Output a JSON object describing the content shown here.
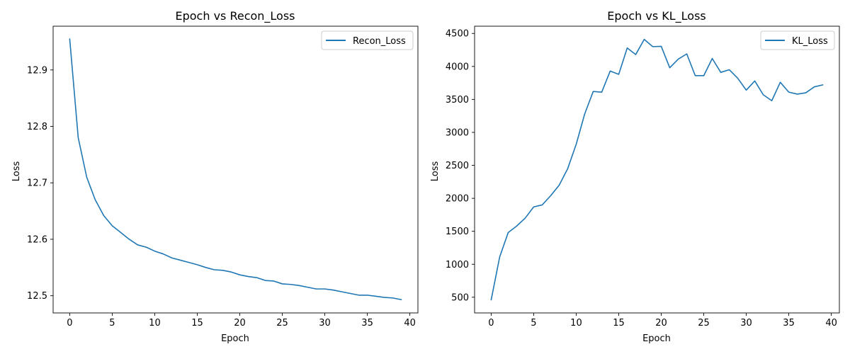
{
  "chart_data": [
    {
      "type": "line",
      "title": "Epoch vs Recon_Loss",
      "xlabel": "Epoch",
      "ylabel": "Loss",
      "xlim": [
        -1.95,
        40.95
      ],
      "ylim": [
        12.4695,
        12.9775
      ],
      "xticks": [
        0,
        5,
        10,
        15,
        20,
        25,
        30,
        35,
        40
      ],
      "xtick_labels": [
        "0",
        "5",
        "10",
        "15",
        "20",
        "25",
        "30",
        "35",
        "40"
      ],
      "yticks": [
        12.5,
        12.6,
        12.7,
        12.8,
        12.9
      ],
      "ytick_labels": [
        "12.5",
        "12.6",
        "12.7",
        "12.8",
        "12.9"
      ],
      "legend": "top-right",
      "grid": false,
      "series": [
        {
          "name": "Recon_Loss",
          "color": "#1f77b4",
          "x": [
            0,
            1,
            2,
            3,
            4,
            5,
            6,
            7,
            8,
            9,
            10,
            11,
            12,
            13,
            14,
            15,
            16,
            17,
            18,
            19,
            20,
            21,
            22,
            23,
            24,
            25,
            26,
            27,
            28,
            29,
            30,
            31,
            32,
            33,
            34,
            35,
            36,
            37,
            38,
            39
          ],
          "y": [
            12.955,
            12.78,
            12.71,
            12.67,
            12.642,
            12.624,
            12.612,
            12.6,
            12.59,
            12.586,
            12.579,
            12.574,
            12.567,
            12.563,
            12.559,
            12.555,
            12.55,
            12.546,
            12.545,
            12.542,
            12.537,
            12.534,
            12.532,
            12.527,
            12.526,
            12.521,
            12.52,
            12.518,
            12.515,
            12.512,
            12.512,
            12.51,
            12.507,
            12.504,
            12.501,
            12.501,
            12.499,
            12.497,
            12.496,
            12.493
          ]
        }
      ]
    },
    {
      "type": "line",
      "title": "Epoch vs KL_Loss",
      "xlabel": "Epoch",
      "ylabel": "Loss",
      "xlim": [
        -1.95,
        40.95
      ],
      "ylim": [
        262,
        4610
      ],
      "xticks": [
        0,
        5,
        10,
        15,
        20,
        25,
        30,
        35,
        40
      ],
      "xtick_labels": [
        "0",
        "5",
        "10",
        "15",
        "20",
        "25",
        "30",
        "35",
        "40"
      ],
      "yticks": [
        500,
        1000,
        1500,
        2000,
        2500,
        3000,
        3500,
        4000,
        4500
      ],
      "ytick_labels": [
        "500",
        "1000",
        "1500",
        "2000",
        "2500",
        "3000",
        "3500",
        "4000",
        "4500"
      ],
      "legend": "top-right",
      "grid": false,
      "series": [
        {
          "name": "KL_Loss",
          "color": "#1f77b4",
          "x": [
            0,
            1,
            2,
            3,
            4,
            5,
            6,
            7,
            8,
            9,
            10,
            11,
            12,
            13,
            14,
            15,
            16,
            17,
            18,
            19,
            20,
            21,
            22,
            23,
            24,
            25,
            26,
            27,
            28,
            29,
            30,
            31,
            32,
            33,
            34,
            35,
            36,
            37,
            38,
            39
          ],
          "y": [
            460,
            1110,
            1480,
            1580,
            1700,
            1870,
            1900,
            2040,
            2200,
            2450,
            2820,
            3280,
            3620,
            3610,
            3930,
            3880,
            4280,
            4180,
            4410,
            4300,
            4305,
            3980,
            4110,
            4190,
            3860,
            3860,
            4120,
            3910,
            3950,
            3820,
            3640,
            3780,
            3570,
            3480,
            3760,
            3610,
            3580,
            3600,
            3690,
            3720
          ]
        }
      ]
    }
  ]
}
